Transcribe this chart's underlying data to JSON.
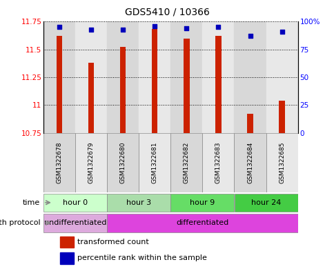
{
  "title": "GDS5410 / 10366",
  "samples": [
    "GSM1322678",
    "GSM1322679",
    "GSM1322680",
    "GSM1322681",
    "GSM1322682",
    "GSM1322683",
    "GSM1322684",
    "GSM1322685"
  ],
  "transformed_count": [
    11.62,
    11.38,
    11.52,
    11.685,
    11.6,
    11.62,
    10.92,
    11.04
  ],
  "percentile_rank": [
    95,
    93,
    93,
    96,
    94,
    95,
    87,
    91
  ],
  "ylim_left": [
    10.75,
    11.75
  ],
  "ylim_right": [
    0,
    100
  ],
  "yticks_left": [
    10.75,
    11.0,
    11.25,
    11.5,
    11.75
  ],
  "ytick_labels_left": [
    "10.75",
    "11",
    "11.25",
    "11.5",
    "11.75"
  ],
  "yticks_right": [
    0,
    25,
    50,
    75,
    100
  ],
  "ytick_labels_right": [
    "0",
    "25",
    "50",
    "75",
    "100%"
  ],
  "bar_color": "#cc2200",
  "dot_color": "#0000bb",
  "background_color": "#ffffff",
  "col_bg_even": "#d8d8d8",
  "col_bg_odd": "#e8e8e8",
  "time_groups": [
    {
      "label": "hour 0",
      "start": 0,
      "end": 2,
      "color": "#ccffcc"
    },
    {
      "label": "hour 3",
      "start": 2,
      "end": 4,
      "color": "#aaddaa"
    },
    {
      "label": "hour 9",
      "start": 4,
      "end": 6,
      "color": "#66dd66"
    },
    {
      "label": "hour 24",
      "start": 6,
      "end": 8,
      "color": "#44cc44"
    }
  ],
  "protocol_groups": [
    {
      "label": "undifferentiated",
      "start": 0,
      "end": 2,
      "color": "#ddaadd"
    },
    {
      "label": "differentiated",
      "start": 2,
      "end": 8,
      "color": "#dd44dd"
    }
  ],
  "legend_items": [
    {
      "label": "transformed count",
      "color": "#cc2200"
    },
    {
      "label": "percentile rank within the sample",
      "color": "#0000bb"
    }
  ],
  "time_label": "time",
  "protocol_label": "growth protocol",
  "base_value": 10.75
}
